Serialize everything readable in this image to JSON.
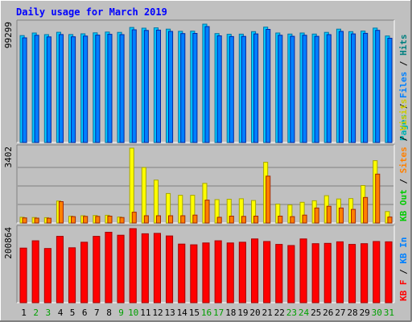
{
  "chart_data": [
    {
      "type": "bar",
      "title": "Daily usage for March 2019",
      "panel": "hits",
      "ylabel_parts": [
        "Pages",
        "Files",
        "Hits"
      ],
      "y_max_label": "99299",
      "ylim": [
        0,
        99299
      ],
      "categories": [
        "1",
        "2",
        "3",
        "4",
        "5",
        "6",
        "7",
        "8",
        "9",
        "10",
        "11",
        "12",
        "13",
        "14",
        "15",
        "16",
        "17",
        "18",
        "19",
        "20",
        "21",
        "22",
        "23",
        "24",
        "25",
        "26",
        "27",
        "28",
        "29",
        "30",
        "31"
      ],
      "series": [
        {
          "name": "Hits",
          "values": [
            89700,
            91900,
            90500,
            92500,
            90600,
            91200,
            92000,
            92700,
            92400,
            96500,
            95900,
            96200,
            95100,
            93300,
            93400,
            99299,
            91400,
            90800,
            90900,
            93000,
            96800,
            91900,
            91000,
            91900,
            91000,
            92400,
            95100,
            93000,
            93500,
            96000,
            89400
          ]
        },
        {
          "name": "Files",
          "values": [
            87800,
            90000,
            88600,
            90600,
            88700,
            89300,
            90100,
            90800,
            90500,
            94600,
            94000,
            94300,
            93200,
            91400,
            91500,
            97300,
            89500,
            88900,
            89000,
            91100,
            94900,
            90000,
            89100,
            90000,
            89100,
            90500,
            93200,
            91100,
            91600,
            94100,
            87500
          ]
        },
        {
          "name": "Pages",
          "values": [
            0,
            0,
            0,
            0,
            0,
            0,
            0,
            0,
            0,
            0,
            0,
            0,
            0,
            0,
            0,
            0,
            0,
            0,
            0,
            0,
            0,
            0,
            0,
            0,
            0,
            0,
            0,
            0,
            0,
            0,
            0
          ]
        }
      ],
      "colors": {
        "Pages": "#00b0b0",
        "Files": "#0080ff",
        "Hits": "#00ccff"
      },
      "label_colors": {
        "Pages": "#00b0b0",
        "Files": "#0080ff",
        "Hits": "#008080"
      }
    },
    {
      "type": "bar",
      "panel": "visits",
      "ylabel_parts": [
        "KB Out",
        "Sites",
        "Visits"
      ],
      "y_max_label": "3402",
      "ylim": [
        0,
        3402
      ],
      "categories": [
        "1",
        "2",
        "3",
        "4",
        "5",
        "6",
        "7",
        "8",
        "9",
        "10",
        "11",
        "12",
        "13",
        "14",
        "15",
        "16",
        "17",
        "18",
        "19",
        "20",
        "21",
        "22",
        "23",
        "24",
        "25",
        "26",
        "27",
        "28",
        "29",
        "30",
        "31"
      ],
      "series": [
        {
          "name": "Visits",
          "values": [
            260,
            250,
            240,
            1000,
            310,
            330,
            340,
            350,
            270,
            3402,
            2520,
            1950,
            1340,
            1260,
            1260,
            1800,
            1060,
            1080,
            1100,
            1020,
            2760,
            860,
            820,
            940,
            1010,
            1240,
            1090,
            1110,
            1700,
            2830,
            520
          ]
        },
        {
          "name": "Sites",
          "values": [
            230,
            220,
            215,
            970,
            290,
            300,
            300,
            310,
            250,
            490,
            330,
            330,
            330,
            330,
            360,
            1040,
            260,
            310,
            300,
            310,
            2130,
            310,
            290,
            360,
            680,
            760,
            680,
            620,
            1160,
            2220,
            270
          ]
        },
        {
          "name": "KB Out",
          "values": [
            0,
            0,
            0,
            0,
            0,
            0,
            0,
            0,
            0,
            0,
            0,
            0,
            0,
            0,
            0,
            0,
            0,
            0,
            0,
            0,
            0,
            0,
            0,
            0,
            0,
            0,
            0,
            0,
            0,
            0,
            0
          ]
        }
      ],
      "colors": {
        "KB Out": "#00cc00",
        "Sites": "#ff8000",
        "Visits": "#ffff00"
      },
      "label_colors": {
        "KB Out": "#00cc00",
        "Sites": "#ff8000",
        "Visits": "#cccc00"
      }
    },
    {
      "type": "bar",
      "panel": "kbytes",
      "ylabel_parts": [
        "KB F",
        "KB In"
      ],
      "y_max_label": "200864",
      "ylim": [
        0,
        200864
      ],
      "categories": [
        "1",
        "2",
        "3",
        "4",
        "5",
        "6",
        "7",
        "8",
        "9",
        "10",
        "11",
        "12",
        "13",
        "14",
        "15",
        "16",
        "17",
        "18",
        "19",
        "20",
        "21",
        "22",
        "23",
        "24",
        "25",
        "26",
        "27",
        "28",
        "29",
        "30",
        "31"
      ],
      "series": [
        {
          "name": "KB F",
          "values": [
            148000,
            168000,
            147000,
            180000,
            149000,
            164000,
            180000,
            191000,
            183000,
            200864,
            187000,
            188000,
            181000,
            159000,
            157000,
            162000,
            168000,
            162000,
            164000,
            173000,
            166000,
            158000,
            155000,
            173000,
            160000,
            161000,
            165000,
            158000,
            160000,
            166000,
            165000
          ]
        },
        {
          "name": "KB In",
          "values": [
            0,
            0,
            0,
            0,
            0,
            0,
            0,
            0,
            0,
            0,
            0,
            0,
            0,
            0,
            0,
            0,
            0,
            0,
            0,
            0,
            0,
            0,
            0,
            0,
            0,
            0,
            0,
            0,
            0,
            0,
            0
          ]
        }
      ],
      "colors": {
        "KB F": "#ff0000",
        "KB In": "#0080ff"
      },
      "label_colors": {
        "KB F": "#ff0000",
        "KB In": "#0080ff"
      }
    }
  ],
  "x_axis": {
    "labels": [
      "1",
      "2",
      "3",
      "4",
      "5",
      "6",
      "7",
      "8",
      "9",
      "10",
      "11",
      "12",
      "13",
      "14",
      "15",
      "16",
      "17",
      "18",
      "19",
      "20",
      "21",
      "22",
      "23",
      "24",
      "25",
      "26",
      "27",
      "28",
      "29",
      "30",
      "31"
    ],
    "weekend_days": [
      "2",
      "3",
      "9",
      "10",
      "16",
      "17",
      "23",
      "24",
      "30",
      "31"
    ],
    "weekday_color": "#000000",
    "weekend_color": "#00a000"
  },
  "colors": {
    "background": "#c0c0c0",
    "frame_light": "#ffffff",
    "frame_dark": "#808080",
    "title": "#0000ff",
    "label_sep": "#000000"
  }
}
